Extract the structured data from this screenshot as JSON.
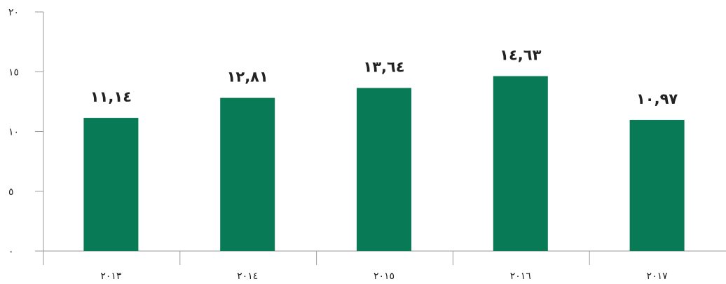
{
  "chart_data": {
    "type": "bar",
    "categories": [
      "٢٠١٣",
      "٢٠١٤",
      "٢٠١٥",
      "٢٠١٦",
      "٢٠١٧"
    ],
    "values": [
      11.14,
      12.81,
      13.64,
      14.63,
      10.97
    ],
    "value_labels": [
      "١١,١٤",
      "١٢,٨١",
      "١٣,٦٤",
      "١٤,٦٣",
      "١٠,٩٧"
    ],
    "y_ticks": [
      0,
      5,
      10,
      15,
      20
    ],
    "y_tick_labels": [
      "٠",
      "٥",
      "١٠",
      "١٥",
      "٢٠"
    ],
    "ylim": [
      0,
      20
    ],
    "title": "",
    "xlabel": "",
    "ylabel": "",
    "grid": false,
    "bar_color": "#087a55",
    "axis_color": "#9a9a9a"
  }
}
